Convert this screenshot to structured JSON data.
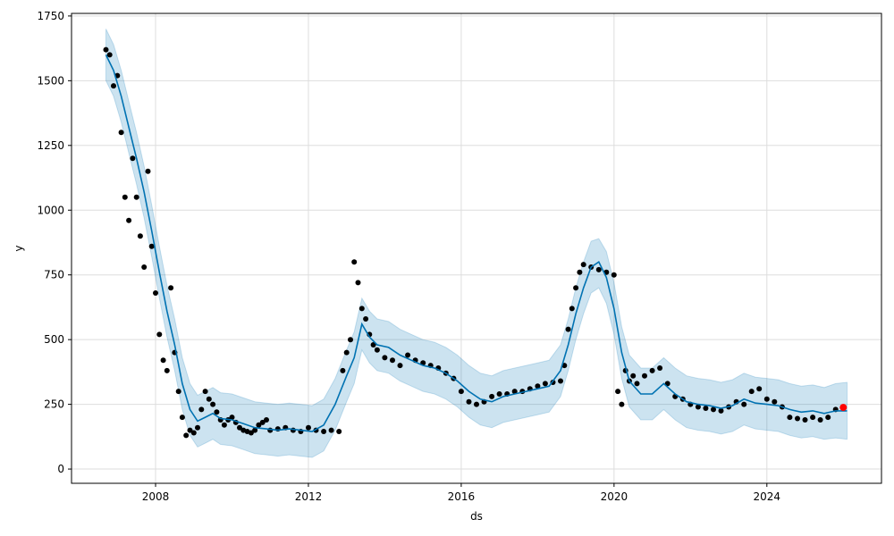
{
  "chart_data": {
    "type": "line",
    "title": "",
    "xlabel": "ds",
    "ylabel": "y",
    "xlim": [
      2005.8,
      2027.0
    ],
    "ylim": [
      -55,
      1760
    ],
    "grid": true,
    "xticks": [
      {
        "value": 2008,
        "label": "2008"
      },
      {
        "value": 2012,
        "label": "2012"
      },
      {
        "value": 2016,
        "label": "2016"
      },
      {
        "value": 2020,
        "label": "2020"
      },
      {
        "value": 2024,
        "label": "2024"
      }
    ],
    "yticks": [
      {
        "value": 0,
        "label": "0"
      },
      {
        "value": 250,
        "label": "250"
      },
      {
        "value": 500,
        "label": "500"
      },
      {
        "value": 750,
        "label": "750"
      },
      {
        "value": 1000,
        "label": "1000"
      },
      {
        "value": 1250,
        "label": "1250"
      },
      {
        "value": 1500,
        "label": "1500"
      },
      {
        "value": 1750,
        "label": "1750"
      }
    ],
    "colors": {
      "forecast": "#0072B2",
      "band": "#0072B2",
      "observed": "#000000",
      "highlight": "#ff0000",
      "grid": "#dddddd"
    },
    "series": [
      {
        "kind": "forecast",
        "x": [
          2006.7,
          2006.9,
          2007.1,
          2007.3,
          2007.5,
          2007.7,
          2007.9,
          2008.1,
          2008.3,
          2008.5,
          2008.7,
          2008.9,
          2009.1,
          2009.3,
          2009.5,
          2009.7,
          2010.0,
          2010.3,
          2010.6,
          2010.9,
          2011.2,
          2011.5,
          2011.8,
          2012.1,
          2012.4,
          2012.7,
          2013.0,
          2013.2,
          2013.4,
          2013.6,
          2013.8,
          2014.1,
          2014.4,
          2014.7,
          2015.0,
          2015.3,
          2015.6,
          2015.9,
          2016.2,
          2016.5,
          2016.8,
          2017.1,
          2017.4,
          2017.7,
          2018.0,
          2018.3,
          2018.6,
          2018.8,
          2019.0,
          2019.2,
          2019.4,
          2019.6,
          2019.8,
          2020.0,
          2020.2,
          2020.4,
          2020.7,
          2021.0,
          2021.3,
          2021.6,
          2021.9,
          2022.2,
          2022.5,
          2022.8,
          2023.1,
          2023.4,
          2023.7,
          2024.0,
          2024.3,
          2024.6,
          2024.9,
          2025.2,
          2025.5,
          2025.8,
          2026.1
        ],
        "y": [
          1600,
          1540,
          1440,
          1320,
          1200,
          1070,
          920,
          760,
          610,
          480,
          330,
          230,
          185,
          200,
          215,
          195,
          190,
          175,
          160,
          155,
          150,
          155,
          150,
          145,
          170,
          250,
          360,
          430,
          560,
          510,
          480,
          470,
          440,
          420,
          400,
          390,
          370,
          340,
          300,
          270,
          260,
          280,
          290,
          300,
          310,
          320,
          380,
          480,
          600,
          700,
          780,
          800,
          740,
          620,
          450,
          340,
          290,
          290,
          330,
          290,
          260,
          250,
          245,
          235,
          245,
          270,
          255,
          250,
          245,
          230,
          220,
          225,
          215,
          225,
          225
        ]
      },
      {
        "kind": "band-upper",
        "x": [
          2006.7,
          2006.9,
          2007.1,
          2007.3,
          2007.5,
          2007.7,
          2007.9,
          2008.1,
          2008.3,
          2008.5,
          2008.7,
          2008.9,
          2009.1,
          2009.3,
          2009.5,
          2009.7,
          2010.0,
          2010.3,
          2010.6,
          2010.9,
          2011.2,
          2011.5,
          2011.8,
          2012.1,
          2012.4,
          2012.7,
          2013.0,
          2013.2,
          2013.4,
          2013.6,
          2013.8,
          2014.1,
          2014.4,
          2014.7,
          2015.0,
          2015.3,
          2015.6,
          2015.9,
          2016.2,
          2016.5,
          2016.8,
          2017.1,
          2017.4,
          2017.7,
          2018.0,
          2018.3,
          2018.6,
          2018.8,
          2019.0,
          2019.2,
          2019.4,
          2019.6,
          2019.8,
          2020.0,
          2020.2,
          2020.4,
          2020.7,
          2021.0,
          2021.3,
          2021.6,
          2021.9,
          2022.2,
          2022.5,
          2022.8,
          2023.1,
          2023.4,
          2023.7,
          2024.0,
          2024.3,
          2024.6,
          2024.9,
          2025.2,
          2025.5,
          2025.8,
          2026.1
        ],
        "y": [
          1700,
          1640,
          1540,
          1420,
          1300,
          1170,
          1020,
          860,
          710,
          580,
          430,
          330,
          285,
          300,
          315,
          295,
          290,
          275,
          260,
          255,
          250,
          255,
          250,
          245,
          270,
          350,
          460,
          530,
          660,
          610,
          580,
          570,
          540,
          520,
          500,
          490,
          470,
          440,
          400,
          370,
          360,
          380,
          390,
          400,
          410,
          420,
          480,
          580,
          700,
          800,
          880,
          890,
          840,
          720,
          550,
          440,
          390,
          390,
          430,
          390,
          360,
          350,
          345,
          335,
          345,
          370,
          355,
          350,
          345,
          330,
          320,
          325,
          315,
          330,
          335
        ]
      },
      {
        "kind": "band-lower",
        "x": [
          2006.7,
          2006.9,
          2007.1,
          2007.3,
          2007.5,
          2007.7,
          2007.9,
          2008.1,
          2008.3,
          2008.5,
          2008.7,
          2008.9,
          2009.1,
          2009.3,
          2009.5,
          2009.7,
          2010.0,
          2010.3,
          2010.6,
          2010.9,
          2011.2,
          2011.5,
          2011.8,
          2012.1,
          2012.4,
          2012.7,
          2013.0,
          2013.2,
          2013.4,
          2013.6,
          2013.8,
          2014.1,
          2014.4,
          2014.7,
          2015.0,
          2015.3,
          2015.6,
          2015.9,
          2016.2,
          2016.5,
          2016.8,
          2017.1,
          2017.4,
          2017.7,
          2018.0,
          2018.3,
          2018.6,
          2018.8,
          2019.0,
          2019.2,
          2019.4,
          2019.6,
          2019.8,
          2020.0,
          2020.2,
          2020.4,
          2020.7,
          2021.0,
          2021.3,
          2021.6,
          2021.9,
          2022.2,
          2022.5,
          2022.8,
          2023.1,
          2023.4,
          2023.7,
          2024.0,
          2024.3,
          2024.6,
          2024.9,
          2025.2,
          2025.5,
          2025.8,
          2026.1
        ],
        "y": [
          1500,
          1440,
          1340,
          1220,
          1100,
          970,
          820,
          660,
          510,
          380,
          230,
          130,
          85,
          100,
          115,
          95,
          90,
          75,
          60,
          55,
          50,
          55,
          50,
          45,
          70,
          150,
          260,
          330,
          460,
          410,
          380,
          370,
          340,
          320,
          300,
          290,
          270,
          240,
          200,
          170,
          160,
          180,
          190,
          200,
          210,
          220,
          280,
          380,
          500,
          600,
          680,
          700,
          640,
          520,
          350,
          240,
          190,
          190,
          230,
          190,
          160,
          150,
          145,
          135,
          145,
          170,
          155,
          150,
          145,
          130,
          120,
          125,
          115,
          120,
          115
        ]
      },
      {
        "kind": "observed",
        "x": [
          2006.7,
          2006.8,
          2006.9,
          2007.0,
          2007.1,
          2007.2,
          2007.3,
          2007.4,
          2007.5,
          2007.6,
          2007.7,
          2007.8,
          2007.9,
          2008.0,
          2008.1,
          2008.2,
          2008.3,
          2008.4,
          2008.5,
          2008.6,
          2008.7,
          2008.8,
          2008.9,
          2009.0,
          2009.1,
          2009.2,
          2009.3,
          2009.4,
          2009.5,
          2009.6,
          2009.7,
          2009.8,
          2009.9,
          2010.0,
          2010.1,
          2010.2,
          2010.3,
          2010.4,
          2010.5,
          2010.6,
          2010.7,
          2010.8,
          2010.9,
          2011.0,
          2011.2,
          2011.4,
          2011.6,
          2011.8,
          2012.0,
          2012.2,
          2012.4,
          2012.6,
          2012.8,
          2012.9,
          2013.0,
          2013.1,
          2013.2,
          2013.3,
          2013.4,
          2013.5,
          2013.6,
          2013.7,
          2013.8,
          2014.0,
          2014.2,
          2014.4,
          2014.6,
          2014.8,
          2015.0,
          2015.2,
          2015.4,
          2015.6,
          2015.8,
          2016.0,
          2016.2,
          2016.4,
          2016.6,
          2016.8,
          2017.0,
          2017.2,
          2017.4,
          2017.6,
          2017.8,
          2018.0,
          2018.2,
          2018.4,
          2018.6,
          2018.7,
          2018.8,
          2018.9,
          2019.0,
          2019.1,
          2019.2,
          2019.4,
          2019.6,
          2019.8,
          2020.0,
          2020.1,
          2020.2,
          2020.3,
          2020.4,
          2020.5,
          2020.6,
          2020.8,
          2021.0,
          2021.2,
          2021.4,
          2021.6,
          2021.8,
          2022.0,
          2022.2,
          2022.4,
          2022.6,
          2022.8,
          2023.0,
          2023.2,
          2023.4,
          2023.6,
          2023.8,
          2024.0,
          2024.2,
          2024.4,
          2024.6,
          2024.8,
          2025.0,
          2025.2,
          2025.4,
          2025.6,
          2025.8
        ],
        "y": [
          1620,
          1600,
          1480,
          1520,
          1300,
          1050,
          960,
          1200,
          1050,
          900,
          780,
          1150,
          860,
          680,
          520,
          420,
          380,
          700,
          450,
          300,
          200,
          130,
          150,
          140,
          160,
          230,
          300,
          270,
          250,
          220,
          190,
          170,
          190,
          200,
          180,
          160,
          150,
          145,
          140,
          150,
          170,
          180,
          190,
          150,
          155,
          160,
          150,
          145,
          160,
          150,
          145,
          150,
          145,
          380,
          450,
          500,
          800,
          720,
          620,
          580,
          520,
          480,
          460,
          430,
          420,
          400,
          440,
          420,
          410,
          400,
          390,
          370,
          350,
          300,
          260,
          250,
          260,
          280,
          290,
          290,
          300,
          300,
          310,
          320,
          330,
          335,
          340,
          400,
          540,
          620,
          700,
          760,
          790,
          780,
          770,
          760,
          750,
          300,
          250,
          380,
          340,
          360,
          330,
          360,
          380,
          390,
          330,
          280,
          270,
          250,
          240,
          235,
          230,
          225,
          240,
          260,
          250,
          300,
          310,
          270,
          260,
          240,
          200,
          195,
          190,
          200,
          190,
          200,
          230
        ]
      },
      {
        "kind": "highlight",
        "x": [
          2026.0
        ],
        "y": [
          238
        ]
      }
    ]
  }
}
